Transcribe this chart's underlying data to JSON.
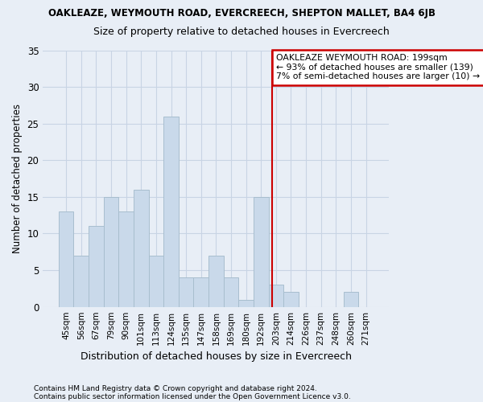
{
  "title": "OAKLEAZE, WEYMOUTH ROAD, EVERCREECH, SHEPTON MALLET, BA4 6JB",
  "subtitle": "Size of property relative to detached houses in Evercreech",
  "xlabel": "Distribution of detached houses by size in Evercreech",
  "ylabel": "Number of detached properties",
  "categories": [
    "45sqm",
    "56sqm",
    "67sqm",
    "79sqm",
    "90sqm",
    "101sqm",
    "113sqm",
    "124sqm",
    "135sqm",
    "147sqm",
    "158sqm",
    "169sqm",
    "180sqm",
    "192sqm",
    "203sqm",
    "214sqm",
    "226sqm",
    "237sqm",
    "248sqm",
    "260sqm",
    "271sqm"
  ],
  "values": [
    13,
    7,
    11,
    15,
    13,
    16,
    7,
    26,
    4,
    4,
    7,
    4,
    1,
    15,
    3,
    2,
    0,
    0,
    0,
    2,
    0
  ],
  "bar_color": "#c9d9ea",
  "bar_edge_color": "#a8bece",
  "grid_color": "#c8d4e4",
  "background_color": "#e8eef6",
  "vline_x": 13.72,
  "vline_color": "#cc0000",
  "annotation_text": "OAKLEAZE WEYMOUTH ROAD: 199sqm\n← 93% of detached houses are smaller (139)\n7% of semi-detached houses are larger (10) →",
  "annotation_box_color": "#ffffff",
  "annotation_border_color": "#cc0000",
  "ylim": [
    0,
    35
  ],
  "yticks": [
    0,
    5,
    10,
    15,
    20,
    25,
    30,
    35
  ],
  "footnote1": "Contains HM Land Registry data © Crown copyright and database right 2024.",
  "footnote2": "Contains public sector information licensed under the Open Government Licence v3.0."
}
